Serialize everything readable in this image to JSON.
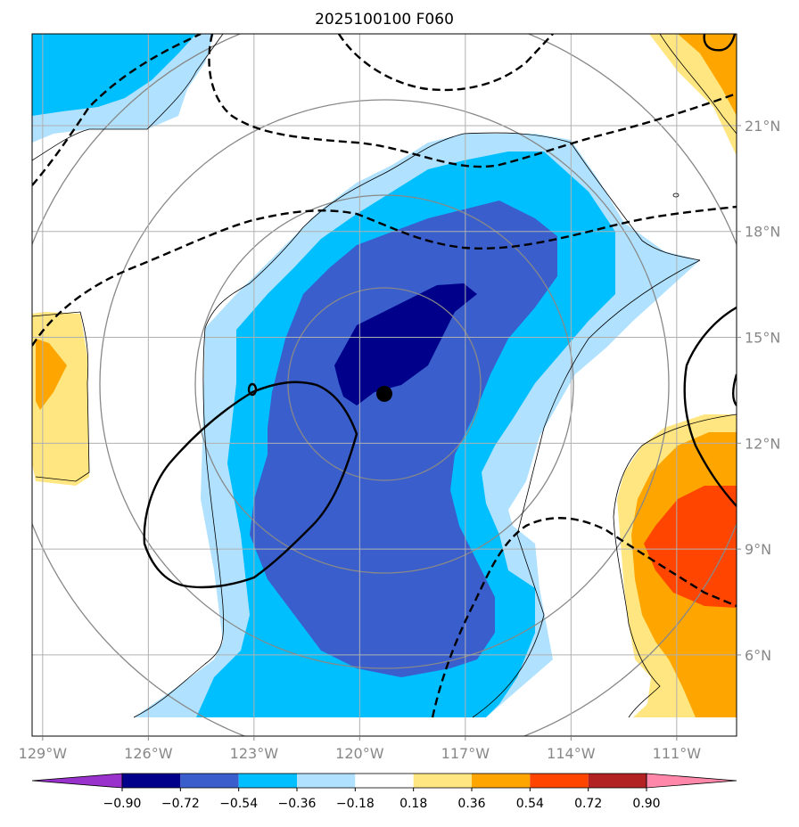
{
  "chart_data": {
    "type": "contour-map",
    "title": "2025100100 F060",
    "x_axis": {
      "ticks": [
        {
          "value": -129,
          "label": "129°W"
        },
        {
          "value": -126,
          "label": "126°W"
        },
        {
          "value": -123,
          "label": "123°W"
        },
        {
          "value": -120,
          "label": "120°W"
        },
        {
          "value": -117,
          "label": "117°W"
        },
        {
          "value": -114,
          "label": "114°W"
        },
        {
          "value": -111,
          "label": "111°W"
        }
      ]
    },
    "y_axis": {
      "ticks": [
        {
          "value": 6,
          "label": "6°N"
        },
        {
          "value": 9,
          "label": "9°N"
        },
        {
          "value": 12,
          "label": "12°N"
        },
        {
          "value": 15,
          "label": "15°N"
        },
        {
          "value": 18,
          "label": "18°N"
        },
        {
          "value": 21,
          "label": "21°N"
        }
      ]
    },
    "extent": {
      "lon": [
        -129.3,
        -109.3
      ],
      "lat": [
        3.7,
        23.6
      ]
    },
    "storm_center": {
      "lon": -119.3,
      "lat": 13.4
    },
    "range_rings_deg": [
      2,
      4,
      6,
      8
    ],
    "colorbar": {
      "levels": [
        -0.9,
        -0.72,
        -0.54,
        -0.36,
        -0.18,
        0.18,
        0.36,
        0.54,
        0.72,
        0.9
      ],
      "labels": [
        "−0.90",
        "−0.72",
        "−0.54",
        "−0.36",
        "−0.18",
        "0.18",
        "0.36",
        "0.54",
        "0.72",
        "0.90"
      ],
      "colors": [
        "#9932cc",
        "#00008b",
        "#3a5fcd",
        "#00bfff",
        "#b0e2ff",
        "#ffffff",
        "#ffe680",
        "#ffa500",
        "#ff4500",
        "#b22222",
        "#ff88aa"
      ]
    }
  }
}
